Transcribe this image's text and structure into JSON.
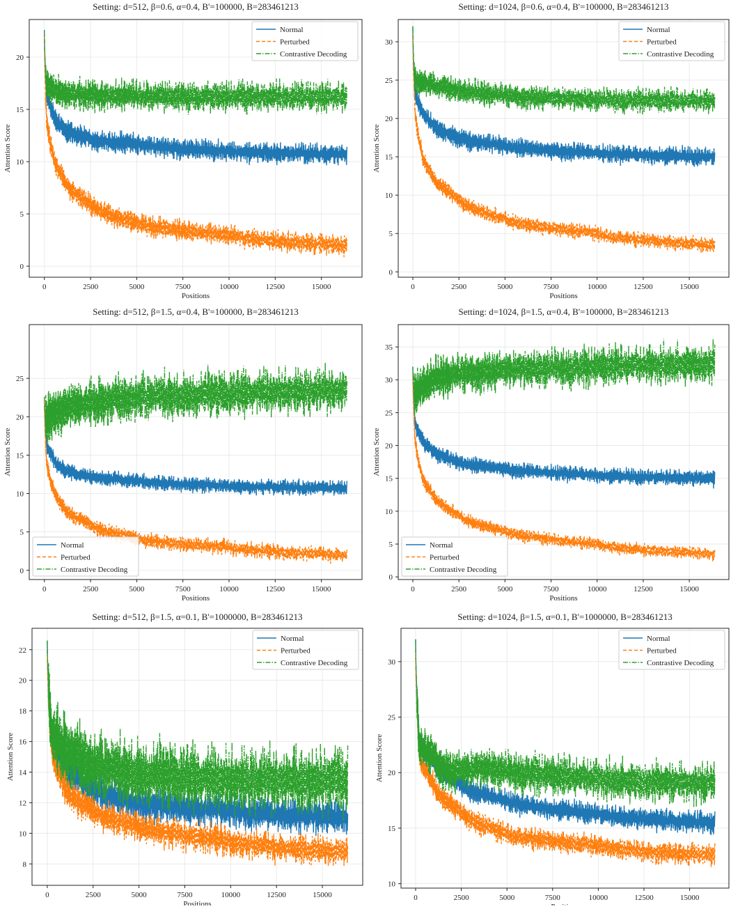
{
  "chart_data": [
    {
      "type": "line",
      "title": "Setting: d=512, β=0.6, α=0.4, B'=100000, B=283461213",
      "xlabel": "Positions",
      "ylabel": "Attention Score",
      "xlim": [
        -820,
        17200
      ],
      "ylim": [
        -1.06,
        23.6
      ],
      "xticks": [
        0,
        2500,
        5000,
        7500,
        10000,
        12500,
        15000
      ],
      "yticks": [
        0,
        5,
        10,
        15,
        20
      ],
      "grid": true,
      "legend": "top-right",
      "series": [
        {
          "name": "Normal",
          "style": "solid",
          "color": "#1f77b4",
          "x": [
            0,
            100,
            500,
            1000,
            2500,
            5000,
            10000,
            16383
          ],
          "y": [
            22.6,
            17,
            14.5,
            13.3,
            12.2,
            11.7,
            11,
            10.7
          ],
          "spread": 0.8
        },
        {
          "name": "Perturbed",
          "style": "dashed",
          "color": "#ff7f0e",
          "x": [
            0,
            100,
            500,
            1000,
            2500,
            5000,
            10000,
            16383
          ],
          "y": [
            22,
            15,
            10.5,
            8.5,
            6,
            4.2,
            3,
            2
          ],
          "spread": 0.8
        },
        {
          "name": "Contrastive Decoding",
          "style": "dashdot",
          "color": "#2ca02c",
          "x": [
            0,
            100,
            1000,
            5000,
            10000,
            16383
          ],
          "y": [
            22.6,
            17.5,
            16.5,
            16.3,
            16.2,
            16.2
          ],
          "spread": 1.2
        }
      ]
    },
    {
      "type": "line",
      "title": "Setting: d=1024, β=0.6, α=0.4, B'=100000, B=283461213",
      "xlabel": "Positions",
      "ylabel": "Attention Score",
      "xlim": [
        -793,
        17150
      ],
      "ylim": [
        -0.7,
        32.9
      ],
      "xticks": [
        0,
        2500,
        5000,
        7500,
        10000,
        12500,
        15000
      ],
      "yticks": [
        0,
        5,
        10,
        15,
        20,
        25,
        30
      ],
      "grid": true,
      "legend": "top-right",
      "series": [
        {
          "name": "Normal",
          "style": "solid",
          "color": "#1f77b4",
          "x": [
            0,
            100,
            500,
            1000,
            2500,
            5000,
            10000,
            16383
          ],
          "y": [
            32,
            24,
            21,
            19.5,
            17.5,
            16.5,
            15.5,
            15
          ],
          "spread": 1.0
        },
        {
          "name": "Perturbed",
          "style": "dashed",
          "color": "#ff7f0e",
          "x": [
            0,
            100,
            500,
            1000,
            2500,
            5000,
            10000,
            16383
          ],
          "y": [
            31,
            22,
            15.5,
            13,
            9.5,
            7,
            5,
            3.5
          ],
          "spread": 0.8
        },
        {
          "name": "Contrastive Decoding",
          "style": "dashdot",
          "color": "#2ca02c",
          "x": [
            0,
            100,
            1000,
            5000,
            10000,
            16383
          ],
          "y": [
            32,
            25,
            24.5,
            23,
            22.5,
            22.3
          ],
          "spread": 1.3
        }
      ]
    },
    {
      "type": "line",
      "title": "Setting: d=512, β=1.5, α=0.4, B'=100000, B=283461213",
      "xlabel": "Positions",
      "ylabel": "Attention Score",
      "xlim": [
        -820,
        17200
      ],
      "ylim": [
        -1.2,
        32
      ],
      "xticks": [
        0,
        2500,
        5000,
        7500,
        10000,
        12500,
        15000
      ],
      "yticks": [
        0,
        5,
        10,
        15,
        20,
        25
      ],
      "grid": true,
      "legend": "bottom-left",
      "series": [
        {
          "name": "Normal",
          "style": "solid",
          "color": "#1f77b4",
          "x": [
            0,
            100,
            500,
            1000,
            2500,
            5000,
            10000,
            16383
          ],
          "y": [
            22.6,
            17,
            14.5,
            13.3,
            12.2,
            11.7,
            11,
            10.7
          ],
          "spread": 0.8
        },
        {
          "name": "Perturbed",
          "style": "dashed",
          "color": "#ff7f0e",
          "x": [
            0,
            100,
            500,
            1000,
            2500,
            5000,
            10000,
            16383
          ],
          "y": [
            22,
            15,
            10.5,
            8.5,
            6,
            4.2,
            3,
            2
          ],
          "spread": 0.8
        },
        {
          "name": "Contrastive Decoding",
          "style": "dashdot",
          "color": "#2ca02c",
          "x": [
            0,
            100,
            1000,
            5000,
            10000,
            16383
          ],
          "y": [
            22.6,
            19.5,
            21,
            22.5,
            23,
            23.5
          ],
          "spread": 2.5
        }
      ]
    },
    {
      "type": "line",
      "title": "Setting: d=1024, β=1.5, α=0.4, B'=100000, B=283461213",
      "xlabel": "Positions",
      "ylabel": "Attention Score",
      "xlim": [
        -793,
        17150
      ],
      "ylim": [
        -0.4,
        38.4
      ],
      "xticks": [
        0,
        2500,
        5000,
        7500,
        10000,
        12500,
        15000
      ],
      "yticks": [
        0,
        5,
        10,
        15,
        20,
        25,
        30,
        35
      ],
      "grid": true,
      "legend": "bottom-left",
      "series": [
        {
          "name": "Normal",
          "style": "solid",
          "color": "#1f77b4",
          "x": [
            0,
            100,
            500,
            1000,
            2500,
            5000,
            10000,
            16383
          ],
          "y": [
            32,
            24,
            21,
            19.5,
            17.5,
            16.5,
            15.5,
            15
          ],
          "spread": 1.0
        },
        {
          "name": "Perturbed",
          "style": "dashed",
          "color": "#ff7f0e",
          "x": [
            0,
            100,
            500,
            1000,
            2500,
            5000,
            10000,
            16383
          ],
          "y": [
            31,
            22,
            15.5,
            13,
            9.5,
            7,
            5,
            3.5
          ],
          "spread": 0.8
        },
        {
          "name": "Contrastive Decoding",
          "style": "dashdot",
          "color": "#2ca02c",
          "x": [
            0,
            100,
            1000,
            5000,
            10000,
            16383
          ],
          "y": [
            32,
            27.5,
            30,
            31.5,
            32,
            32.5
          ],
          "spread": 2.5
        }
      ]
    },
    {
      "type": "line",
      "title": "Setting: d=512, β=1.5, α=0.1, B'=1000000, B=283461213",
      "xlabel": "Positions",
      "ylabel": "Attention Score",
      "xlim": [
        -830,
        17200
      ],
      "ylim": [
        6.6,
        23.4
      ],
      "xticks": [
        0,
        2500,
        5000,
        7500,
        10000,
        12500,
        15000
      ],
      "yticks": [
        8,
        10,
        12,
        14,
        16,
        18,
        20,
        22
      ],
      "grid": true,
      "legend": "top-right",
      "series": [
        {
          "name": "Normal",
          "style": "solid",
          "color": "#1f77b4",
          "x": [
            0,
            200,
            1000,
            2500,
            5000,
            10000,
            16383
          ],
          "y": [
            22.6,
            17,
            14.5,
            13,
            12,
            11.5,
            11
          ],
          "spread": 0.9
        },
        {
          "name": "Perturbed",
          "style": "dashed",
          "color": "#ff7f0e",
          "x": [
            0,
            200,
            1000,
            2500,
            5000,
            10000,
            16383
          ],
          "y": [
            22,
            16,
            13,
            11.5,
            10.5,
            9.5,
            8.8
          ],
          "spread": 0.8
        },
        {
          "name": "Contrastive Decoding",
          "style": "dashdot",
          "color": "#2ca02c",
          "x": [
            0,
            200,
            1000,
            1500,
            2500,
            5000,
            10000,
            16383
          ],
          "y": [
            22.6,
            17,
            15.5,
            15.2,
            14.5,
            14,
            13.5,
            13.5
          ],
          "spread": 1.8
        }
      ]
    },
    {
      "type": "line",
      "title": "Setting: d=1024, β=1.5, α=0.1, B'=1000000, B=283461213",
      "xlabel": "Positions",
      "ylabel": "Attention Score",
      "xlim": [
        -800,
        17150
      ],
      "ylim": [
        9.6,
        33
      ],
      "xticks": [
        0,
        2500,
        5000,
        7500,
        10000,
        12500,
        15000
      ],
      "yticks": [
        10,
        15,
        20,
        25,
        30
      ],
      "grid": true,
      "legend": "top-right",
      "series": [
        {
          "name": "Normal",
          "style": "solid",
          "color": "#1f77b4",
          "x": [
            0,
            200,
            1000,
            2500,
            5000,
            10000,
            16383
          ],
          "y": [
            32,
            23,
            21,
            19,
            17.5,
            16.3,
            15.5
          ],
          "spread": 0.8
        },
        {
          "name": "Perturbed",
          "style": "dashed",
          "color": "#ff7f0e",
          "x": [
            0,
            200,
            1000,
            2500,
            5000,
            10000,
            16383
          ],
          "y": [
            31,
            22,
            19,
            16.5,
            14.5,
            13.5,
            12.5
          ],
          "spread": 0.8
        },
        {
          "name": "Contrastive Decoding",
          "style": "dashdot",
          "color": "#2ca02c",
          "x": [
            0,
            200,
            1000,
            2000,
            4000,
            10000,
            16383
          ],
          "y": [
            32,
            22.5,
            21.5,
            20,
            20.5,
            19.5,
            19
          ],
          "spread": 1.5
        }
      ]
    }
  ]
}
